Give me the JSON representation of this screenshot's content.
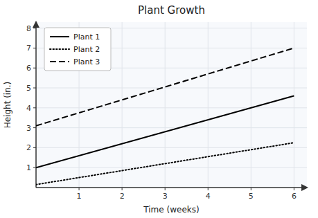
{
  "chart_data": {
    "type": "line",
    "title": "Plant Growth",
    "x_label": "Time (weeks)",
    "y_label": "Height (in.)",
    "x": [
      0,
      6
    ],
    "series": [
      {
        "name": "Plant 1",
        "color": "#000000",
        "line_style": "solid",
        "values": [
          1.0,
          4.6
        ]
      },
      {
        "name": "Plant 2",
        "color": "#000000",
        "line_style": "dotted",
        "values": [
          0.15,
          2.25
        ]
      },
      {
        "name": "Plant 3",
        "color": "#000000",
        "line_style": "dashed",
        "values": [
          3.1,
          7.0
        ]
      }
    ],
    "xlim": [
      0,
      6.3
    ],
    "ylim": [
      0,
      8.3
    ],
    "xticks": [
      1,
      2,
      3,
      4,
      5,
      6
    ],
    "yticks": [
      1,
      2,
      3,
      4,
      5,
      6,
      7,
      8
    ],
    "grid": true,
    "legend": "upper left"
  }
}
